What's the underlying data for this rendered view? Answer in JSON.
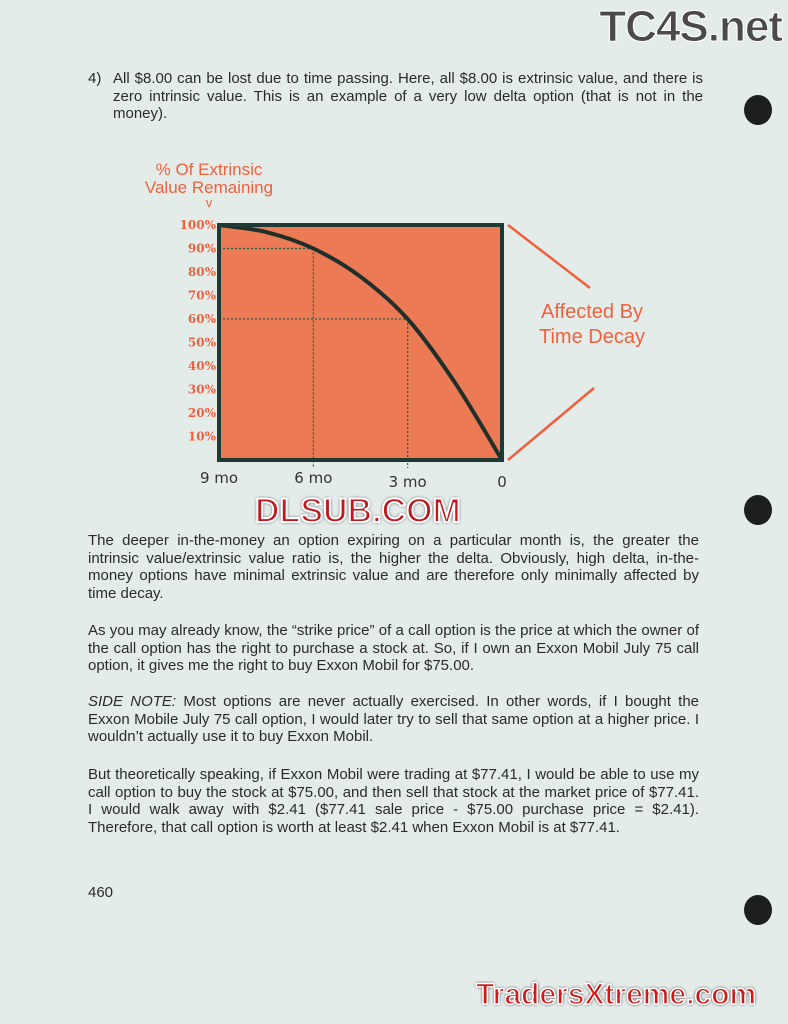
{
  "watermarks": {
    "top": "TC4S.net",
    "middle": "DLSUB.COM",
    "bottom": "TradersXtreme.com"
  },
  "item4": {
    "number": "4)",
    "text": "All $8.00 can be lost due to time passing.  Here, all $8.00 is extrinsic value, and there is zero intrinsic value.  This is an example of a very low delta option (that is not in the money)."
  },
  "chart_data": {
    "type": "area",
    "ylabel": "% Of Extrinsic Value Remaining",
    "ylabel_arrow": "v",
    "annotation": "Affected By Time Decay",
    "x_ticks": [
      "9 mo",
      "6 mo",
      "3 mo",
      "0"
    ],
    "y_ticks": [
      "100%",
      "90%",
      "80%",
      "70%",
      "60%",
      "50%",
      "40%",
      "30%",
      "20%",
      "10%"
    ],
    "x_months_remaining": [
      9,
      7.5,
      6,
      4.5,
      3,
      1.5,
      0
    ],
    "y_percent": [
      100,
      97,
      90,
      78,
      60,
      33,
      0
    ],
    "reference_points": [
      {
        "x": 6,
        "y": 90
      },
      {
        "x": 3,
        "y": 60
      }
    ],
    "ylim": [
      0,
      100
    ],
    "xlim": [
      9,
      0
    ],
    "fill_color": "#ec7a55",
    "line_color": "#1f2f2a",
    "label_color": "#f0603c"
  },
  "paragraphs": [
    "The deeper in-the-money an option expiring on a particular month is, the greater the intrinsic value/extrinsic value ratio is, the higher the delta.  Obviously, high delta, in-the-money options have minimal extrinsic value and are therefore only minimally affected by time decay.",
    "As you may already know, the “strike price” of a call option is the price at which the owner of the call option has the right to purchase a stock at.  So, if I own an Exxon Mobil July 75 call option, it gives me the right to buy Exxon Mobil for $75.00.",
    "Most options are never actually exercised.  In other words, if I bought the Exxon Mobile July 75 call option, I would later try to sell that same option at a higher price.  I wouldn’t actually use it to buy Exxon Mobil.",
    "But theoretically speaking, if Exxon Mobil were trading at $77.41, I would be able to use my call option to buy the stock at $75.00, and then sell that stock at the market price of $77.41.  I would walk away with $2.41 ($77.41 sale price - $75.00 purchase price = $2.41).  Therefore, that call option is worth at least $2.41 when Exxon Mobil is at $77.41."
  ],
  "side_note_label": "SIDE NOTE:",
  "page_number": "460"
}
